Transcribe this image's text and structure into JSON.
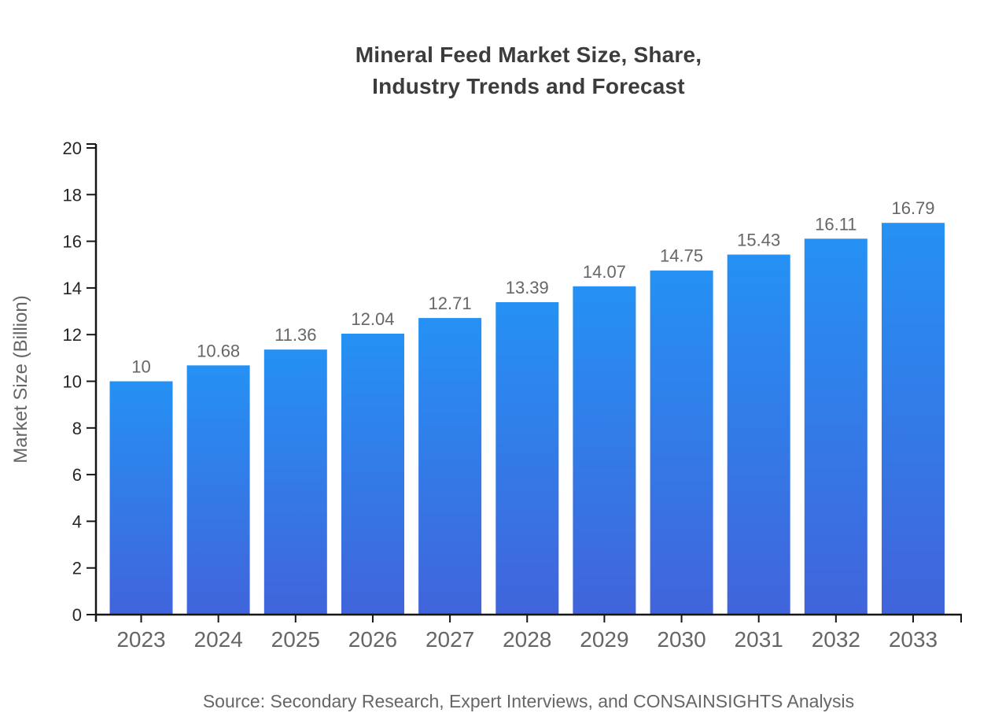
{
  "title": {
    "line1": "Mineral Feed Market Size, Share,",
    "line2": "Industry Trends and Forecast"
  },
  "source_note": "Source: Secondary Research, Expert Interviews, and CONSAINSIGHTS Analysis",
  "colors": {
    "background": "#ffffff",
    "bar_gradient_top": "#2591f4",
    "bar_gradient_bottom": "#4164db",
    "axis": "#161616",
    "tick_label": "#262626",
    "value_label": "#666666",
    "category_label": "#666666",
    "axis_title": "#666666",
    "title_text": "#3c3c3c",
    "source_text": "#666666"
  },
  "chart_data": {
    "type": "bar",
    "title": "Mineral Feed Market Size, Share, Industry Trends and Forecast",
    "categories": [
      "2023",
      "2024",
      "2025",
      "2026",
      "2027",
      "2028",
      "2029",
      "2030",
      "2031",
      "2032",
      "2033"
    ],
    "values": [
      10,
      10.68,
      11.36,
      12.04,
      12.71,
      13.39,
      14.07,
      14.75,
      15.43,
      16.11,
      16.79
    ],
    "value_labels": [
      "10",
      "10.68",
      "11.36",
      "12.04",
      "12.71",
      "13.39",
      "14.07",
      "14.75",
      "15.43",
      "16.11",
      "16.79"
    ],
    "xlabel": "",
    "ylabel": "Market Size (Billion)",
    "ylim": [
      0,
      20
    ],
    "yticks": [
      0,
      2,
      4,
      6,
      8,
      10,
      12,
      14,
      16,
      18,
      20
    ],
    "grid": false,
    "legend": "none",
    "bar_style": "vertical-gradient"
  }
}
